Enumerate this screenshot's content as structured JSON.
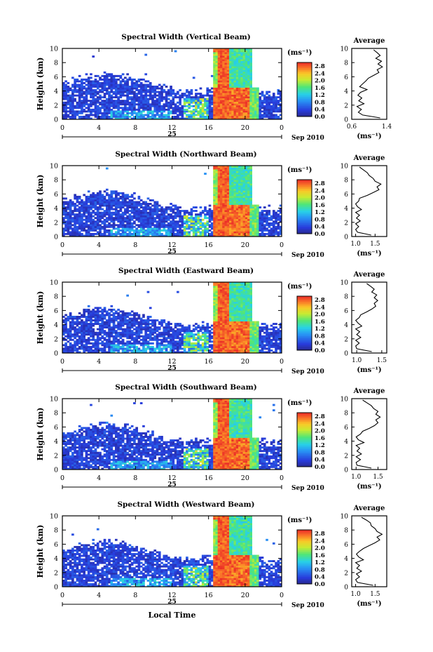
{
  "figure": {
    "xlabel": "Local Time",
    "date_label": "Sep 2010",
    "day_label": "25",
    "avg_title": "Average",
    "unit_label": "(ms⁻¹)",
    "colorbar_ticks": [
      "0.0",
      "0.4",
      "0.8",
      "1.2",
      "1.6",
      "2.0",
      "2.4",
      "2.8"
    ]
  },
  "chart_data": [
    {
      "type": "heatmap",
      "title": "Spectral Width (Vertical Beam)",
      "ylabel": "Height (km)",
      "x_ticks": [
        "0",
        "4",
        "8",
        "12",
        "16",
        "20",
        "0"
      ],
      "y_ticks": [
        "0",
        "2",
        "4",
        "6",
        "8",
        "10"
      ],
      "xlim": [
        0,
        24
      ],
      "ylim": [
        0,
        10
      ],
      "clim": [
        0,
        3.0
      ],
      "average_profile": {
        "xlim": [
          0.6,
          1.4
        ],
        "x_ticks": [
          "0.6",
          "1.4"
        ],
        "y_ticks": [
          "0",
          "2",
          "4",
          "6",
          "8",
          "10"
        ],
        "height_km": [
          0.2,
          0.6,
          1.0,
          1.4,
          1.8,
          2.2,
          2.6,
          3.0,
          3.4,
          3.8,
          4.2,
          4.6,
          5.0,
          5.4,
          5.8,
          6.2,
          6.6,
          7.0,
          7.4,
          7.8,
          8.2,
          8.6,
          9.0,
          9.4,
          9.8
        ],
        "width": [
          1.25,
          0.85,
          0.75,
          0.82,
          0.72,
          0.88,
          0.76,
          0.83,
          0.74,
          0.8,
          0.95,
          0.78,
          0.85,
          0.92,
          0.98,
          1.1,
          1.22,
          1.18,
          1.3,
          1.2,
          1.28,
          1.15,
          1.25,
          1.18,
          1.1
        ]
      }
    },
    {
      "type": "heatmap",
      "title": "Spectral Width (Northward Beam)",
      "ylabel": "Height (km)",
      "x_ticks": [
        "0",
        "4",
        "8",
        "12",
        "16",
        "20",
        "0"
      ],
      "y_ticks": [
        "0",
        "2",
        "4",
        "6",
        "8",
        "10"
      ],
      "xlim": [
        0,
        24
      ],
      "ylim": [
        0,
        10
      ],
      "clim": [
        0,
        3.0
      ],
      "average_profile": {
        "xlim": [
          0.9,
          1.8
        ],
        "x_ticks": [
          "1.0",
          "1.5"
        ],
        "y_ticks": [
          "0",
          "2",
          "4",
          "6",
          "8",
          "10"
        ],
        "height_km": [
          0.2,
          0.6,
          1.0,
          1.4,
          1.8,
          2.2,
          2.6,
          3.0,
          3.4,
          3.8,
          4.2,
          4.6,
          5.0,
          5.4,
          5.8,
          6.2,
          6.6,
          7.0,
          7.4,
          7.8,
          8.2,
          8.6,
          9.0,
          9.4,
          9.8
        ],
        "width": [
          1.4,
          1.05,
          1.0,
          1.08,
          1.0,
          1.12,
          1.02,
          1.1,
          1.0,
          1.15,
          1.05,
          1.0,
          1.08,
          1.1,
          1.3,
          1.45,
          1.6,
          1.55,
          1.65,
          1.5,
          1.45,
          1.35,
          1.3,
          1.2,
          1.1
        ]
      }
    },
    {
      "type": "heatmap",
      "title": "Spectral Width (Eastward Beam)",
      "ylabel": "Height (km)",
      "x_ticks": [
        "0",
        "4",
        "8",
        "12",
        "16",
        "20",
        "0"
      ],
      "y_ticks": [
        "0",
        "2",
        "4",
        "6",
        "8",
        "10"
      ],
      "xlim": [
        0,
        24
      ],
      "ylim": [
        0,
        10
      ],
      "clim": [
        0,
        3.0
      ],
      "average_profile": {
        "xlim": [
          0.9,
          1.6
        ],
        "x_ticks": [
          "1.0",
          "1.5"
        ],
        "y_ticks": [
          "0",
          "2",
          "4",
          "6",
          "8",
          "10"
        ],
        "height_km": [
          0.2,
          0.6,
          1.0,
          1.4,
          1.8,
          2.2,
          2.6,
          3.0,
          3.4,
          3.8,
          4.2,
          4.6,
          5.0,
          5.4,
          5.8,
          6.2,
          6.6,
          7.0,
          7.4,
          7.8,
          8.2,
          8.6,
          9.0,
          9.4,
          9.8
        ],
        "width": [
          1.3,
          1.0,
          0.98,
          1.05,
          0.98,
          1.08,
          1.0,
          1.06,
          0.98,
          1.1,
          1.03,
          0.98,
          1.05,
          1.08,
          1.2,
          1.3,
          1.38,
          1.35,
          1.42,
          1.35,
          1.4,
          1.3,
          1.35,
          1.28,
          1.2
        ]
      }
    },
    {
      "type": "heatmap",
      "title": "Spectral Width (Southward Beam)",
      "ylabel": "Height (km)",
      "x_ticks": [
        "0",
        "4",
        "8",
        "12",
        "16",
        "20",
        "0"
      ],
      "y_ticks": [
        "0",
        "2",
        "4",
        "6",
        "8",
        "10"
      ],
      "xlim": [
        0,
        24
      ],
      "ylim": [
        0,
        10
      ],
      "clim": [
        0,
        3.0
      ],
      "average_profile": {
        "xlim": [
          0.9,
          1.7
        ],
        "x_ticks": [
          "1.0",
          "1.5"
        ],
        "y_ticks": [
          "0",
          "2",
          "4",
          "6",
          "8",
          "10"
        ],
        "height_km": [
          0.2,
          0.6,
          1.0,
          1.4,
          1.8,
          2.2,
          2.6,
          3.0,
          3.4,
          3.8,
          4.2,
          4.6,
          5.0,
          5.4,
          5.8,
          6.2,
          6.6,
          7.0,
          7.4,
          7.8,
          8.2,
          8.6,
          9.0,
          9.4,
          9.8
        ],
        "width": [
          1.35,
          1.02,
          1.0,
          1.1,
          1.0,
          1.12,
          1.02,
          1.08,
          1.0,
          1.18,
          1.05,
          1.0,
          1.1,
          1.15,
          1.3,
          1.42,
          1.5,
          1.45,
          1.55,
          1.45,
          1.5,
          1.4,
          1.35,
          1.25,
          1.15
        ]
      }
    },
    {
      "type": "heatmap",
      "title": "Spectral Width (Westward Beam)",
      "ylabel": "Height (km)",
      "x_ticks": [
        "0",
        "4",
        "8",
        "12",
        "16",
        "20",
        "0"
      ],
      "y_ticks": [
        "0",
        "2",
        "4",
        "6",
        "8",
        "10"
      ],
      "xlim": [
        0,
        24
      ],
      "ylim": [
        0,
        10
      ],
      "clim": [
        0,
        3.0
      ],
      "average_profile": {
        "xlim": [
          0.9,
          1.8
        ],
        "x_ticks": [
          "1.0",
          "1.5"
        ],
        "y_ticks": [
          "0",
          "2",
          "4",
          "6",
          "8",
          "10"
        ],
        "height_km": [
          0.2,
          0.6,
          1.0,
          1.4,
          1.8,
          2.2,
          2.6,
          3.0,
          3.4,
          3.8,
          4.2,
          4.6,
          5.0,
          5.4,
          5.8,
          6.2,
          6.6,
          7.0,
          7.4,
          7.8,
          8.2,
          8.6,
          9.0,
          9.4,
          9.8
        ],
        "width": [
          1.45,
          1.05,
          1.0,
          1.1,
          1.02,
          1.15,
          1.03,
          1.1,
          1.0,
          1.2,
          1.08,
          1.02,
          1.1,
          1.2,
          1.35,
          1.5,
          1.62,
          1.55,
          1.68,
          1.55,
          1.5,
          1.4,
          1.38,
          1.28,
          1.15
        ]
      }
    }
  ]
}
